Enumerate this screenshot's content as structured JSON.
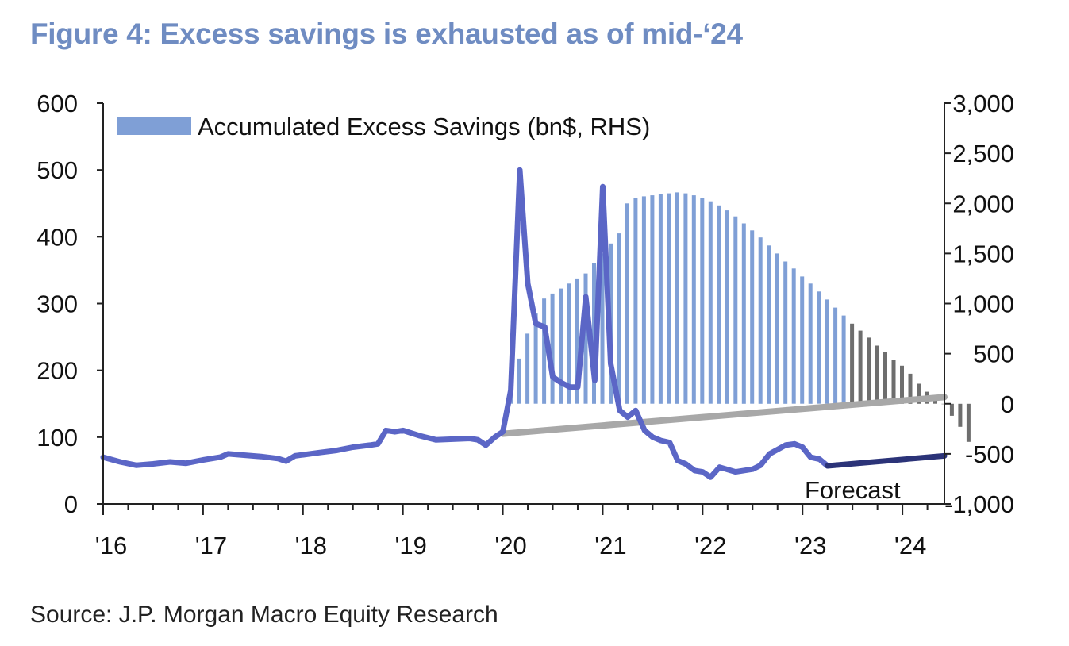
{
  "title": "Figure 4: Excess savings is exhausted as of mid-‘24",
  "source": "Source: J.P. Morgan Macro Equity Research",
  "colors": {
    "title": "#6f8cc2",
    "line": "#5b66c6",
    "line_forecast": "#2b3378",
    "bars": "#7f9fd6",
    "bars_forecast": "#6e6e6e",
    "trend": "#a8a8a8"
  },
  "chart_data": {
    "type": "bar+line",
    "legend": {
      "position": "top-left",
      "label": "Accumulated Excess Savings (bn$, RHS)"
    },
    "annotation": "Forecast",
    "x_ticks": [
      "'16",
      "'17",
      "'18",
      "'19",
      "'20",
      "'21",
      "'22",
      "'23",
      "'24"
    ],
    "x_range": [
      2016.0,
      2024.42
    ],
    "y_left": {
      "range": [
        0,
        600
      ],
      "ticks": [
        "0",
        "100",
        "200",
        "300",
        "400",
        "500",
        "600"
      ]
    },
    "y_right": {
      "range": [
        -1000,
        3000
      ],
      "ticks": [
        "-1,000",
        "-500",
        "0",
        "500",
        "1,000",
        "1,500",
        "2,000",
        "2,500",
        "3,000"
      ]
    },
    "grid": false,
    "bar_series": {
      "name": "Accumulated Excess Savings (bn$, RHS)",
      "axis": "right",
      "start_year": 2020.08,
      "step": 0.0833,
      "values": [
        100,
        450,
        700,
        900,
        1050,
        1100,
        1150,
        1200,
        1250,
        1300,
        1400,
        1500,
        1600,
        1700,
        2000,
        2050,
        2070,
        2080,
        2090,
        2100,
        2110,
        2100,
        2080,
        2050,
        2020,
        1980,
        1930,
        1870,
        1800,
        1730,
        1660,
        1580,
        1500,
        1420,
        1350,
        1270,
        1200,
        1120,
        1040,
        960,
        880,
        800,
        730,
        660,
        580,
        520,
        440,
        380,
        300,
        200,
        120,
        50,
        0,
        -120,
        -230,
        -380
      ],
      "forecast_from_index": 41
    },
    "line_series": {
      "axis": "left",
      "points": [
        [
          2016.0,
          70
        ],
        [
          2016.17,
          63
        ],
        [
          2016.33,
          58
        ],
        [
          2016.5,
          60
        ],
        [
          2016.67,
          63
        ],
        [
          2016.83,
          61
        ],
        [
          2017.0,
          66
        ],
        [
          2017.17,
          70
        ],
        [
          2017.25,
          75
        ],
        [
          2017.42,
          73
        ],
        [
          2017.58,
          71
        ],
        [
          2017.75,
          68
        ],
        [
          2017.83,
          64
        ],
        [
          2017.92,
          72
        ],
        [
          2018.17,
          77
        ],
        [
          2018.33,
          80
        ],
        [
          2018.5,
          85
        ],
        [
          2018.67,
          88
        ],
        [
          2018.75,
          90
        ],
        [
          2018.83,
          110
        ],
        [
          2018.92,
          108
        ],
        [
          2019.0,
          110
        ],
        [
          2019.17,
          102
        ],
        [
          2019.33,
          96
        ],
        [
          2019.5,
          97
        ],
        [
          2019.67,
          98
        ],
        [
          2019.75,
          96
        ],
        [
          2019.83,
          88
        ],
        [
          2019.92,
          100
        ],
        [
          2020.0,
          108
        ],
        [
          2020.08,
          170
        ],
        [
          2020.17,
          500
        ],
        [
          2020.25,
          330
        ],
        [
          2020.33,
          270
        ],
        [
          2020.42,
          265
        ],
        [
          2020.5,
          190
        ],
        [
          2020.58,
          182
        ],
        [
          2020.67,
          175
        ],
        [
          2020.75,
          175
        ],
        [
          2020.83,
          310
        ],
        [
          2020.92,
          185
        ],
        [
          2021.0,
          475
        ],
        [
          2021.08,
          210
        ],
        [
          2021.17,
          140
        ],
        [
          2021.25,
          130
        ],
        [
          2021.33,
          140
        ],
        [
          2021.42,
          110
        ],
        [
          2021.5,
          100
        ],
        [
          2021.58,
          95
        ],
        [
          2021.67,
          92
        ],
        [
          2021.75,
          65
        ],
        [
          2021.83,
          60
        ],
        [
          2021.92,
          50
        ],
        [
          2022.0,
          48
        ],
        [
          2022.08,
          40
        ],
        [
          2022.17,
          55
        ],
        [
          2022.33,
          48
        ],
        [
          2022.5,
          52
        ],
        [
          2022.58,
          58
        ],
        [
          2022.67,
          75
        ],
        [
          2022.83,
          88
        ],
        [
          2022.92,
          90
        ],
        [
          2023.0,
          85
        ],
        [
          2023.08,
          70
        ],
        [
          2023.17,
          67
        ],
        [
          2023.25,
          57
        ]
      ],
      "forecast_points": [
        [
          2023.25,
          57
        ],
        [
          2024.42,
          72
        ]
      ]
    },
    "trend_line": {
      "axis": "left",
      "points": [
        [
          2020.0,
          105
        ],
        [
          2024.42,
          160
        ]
      ]
    }
  }
}
